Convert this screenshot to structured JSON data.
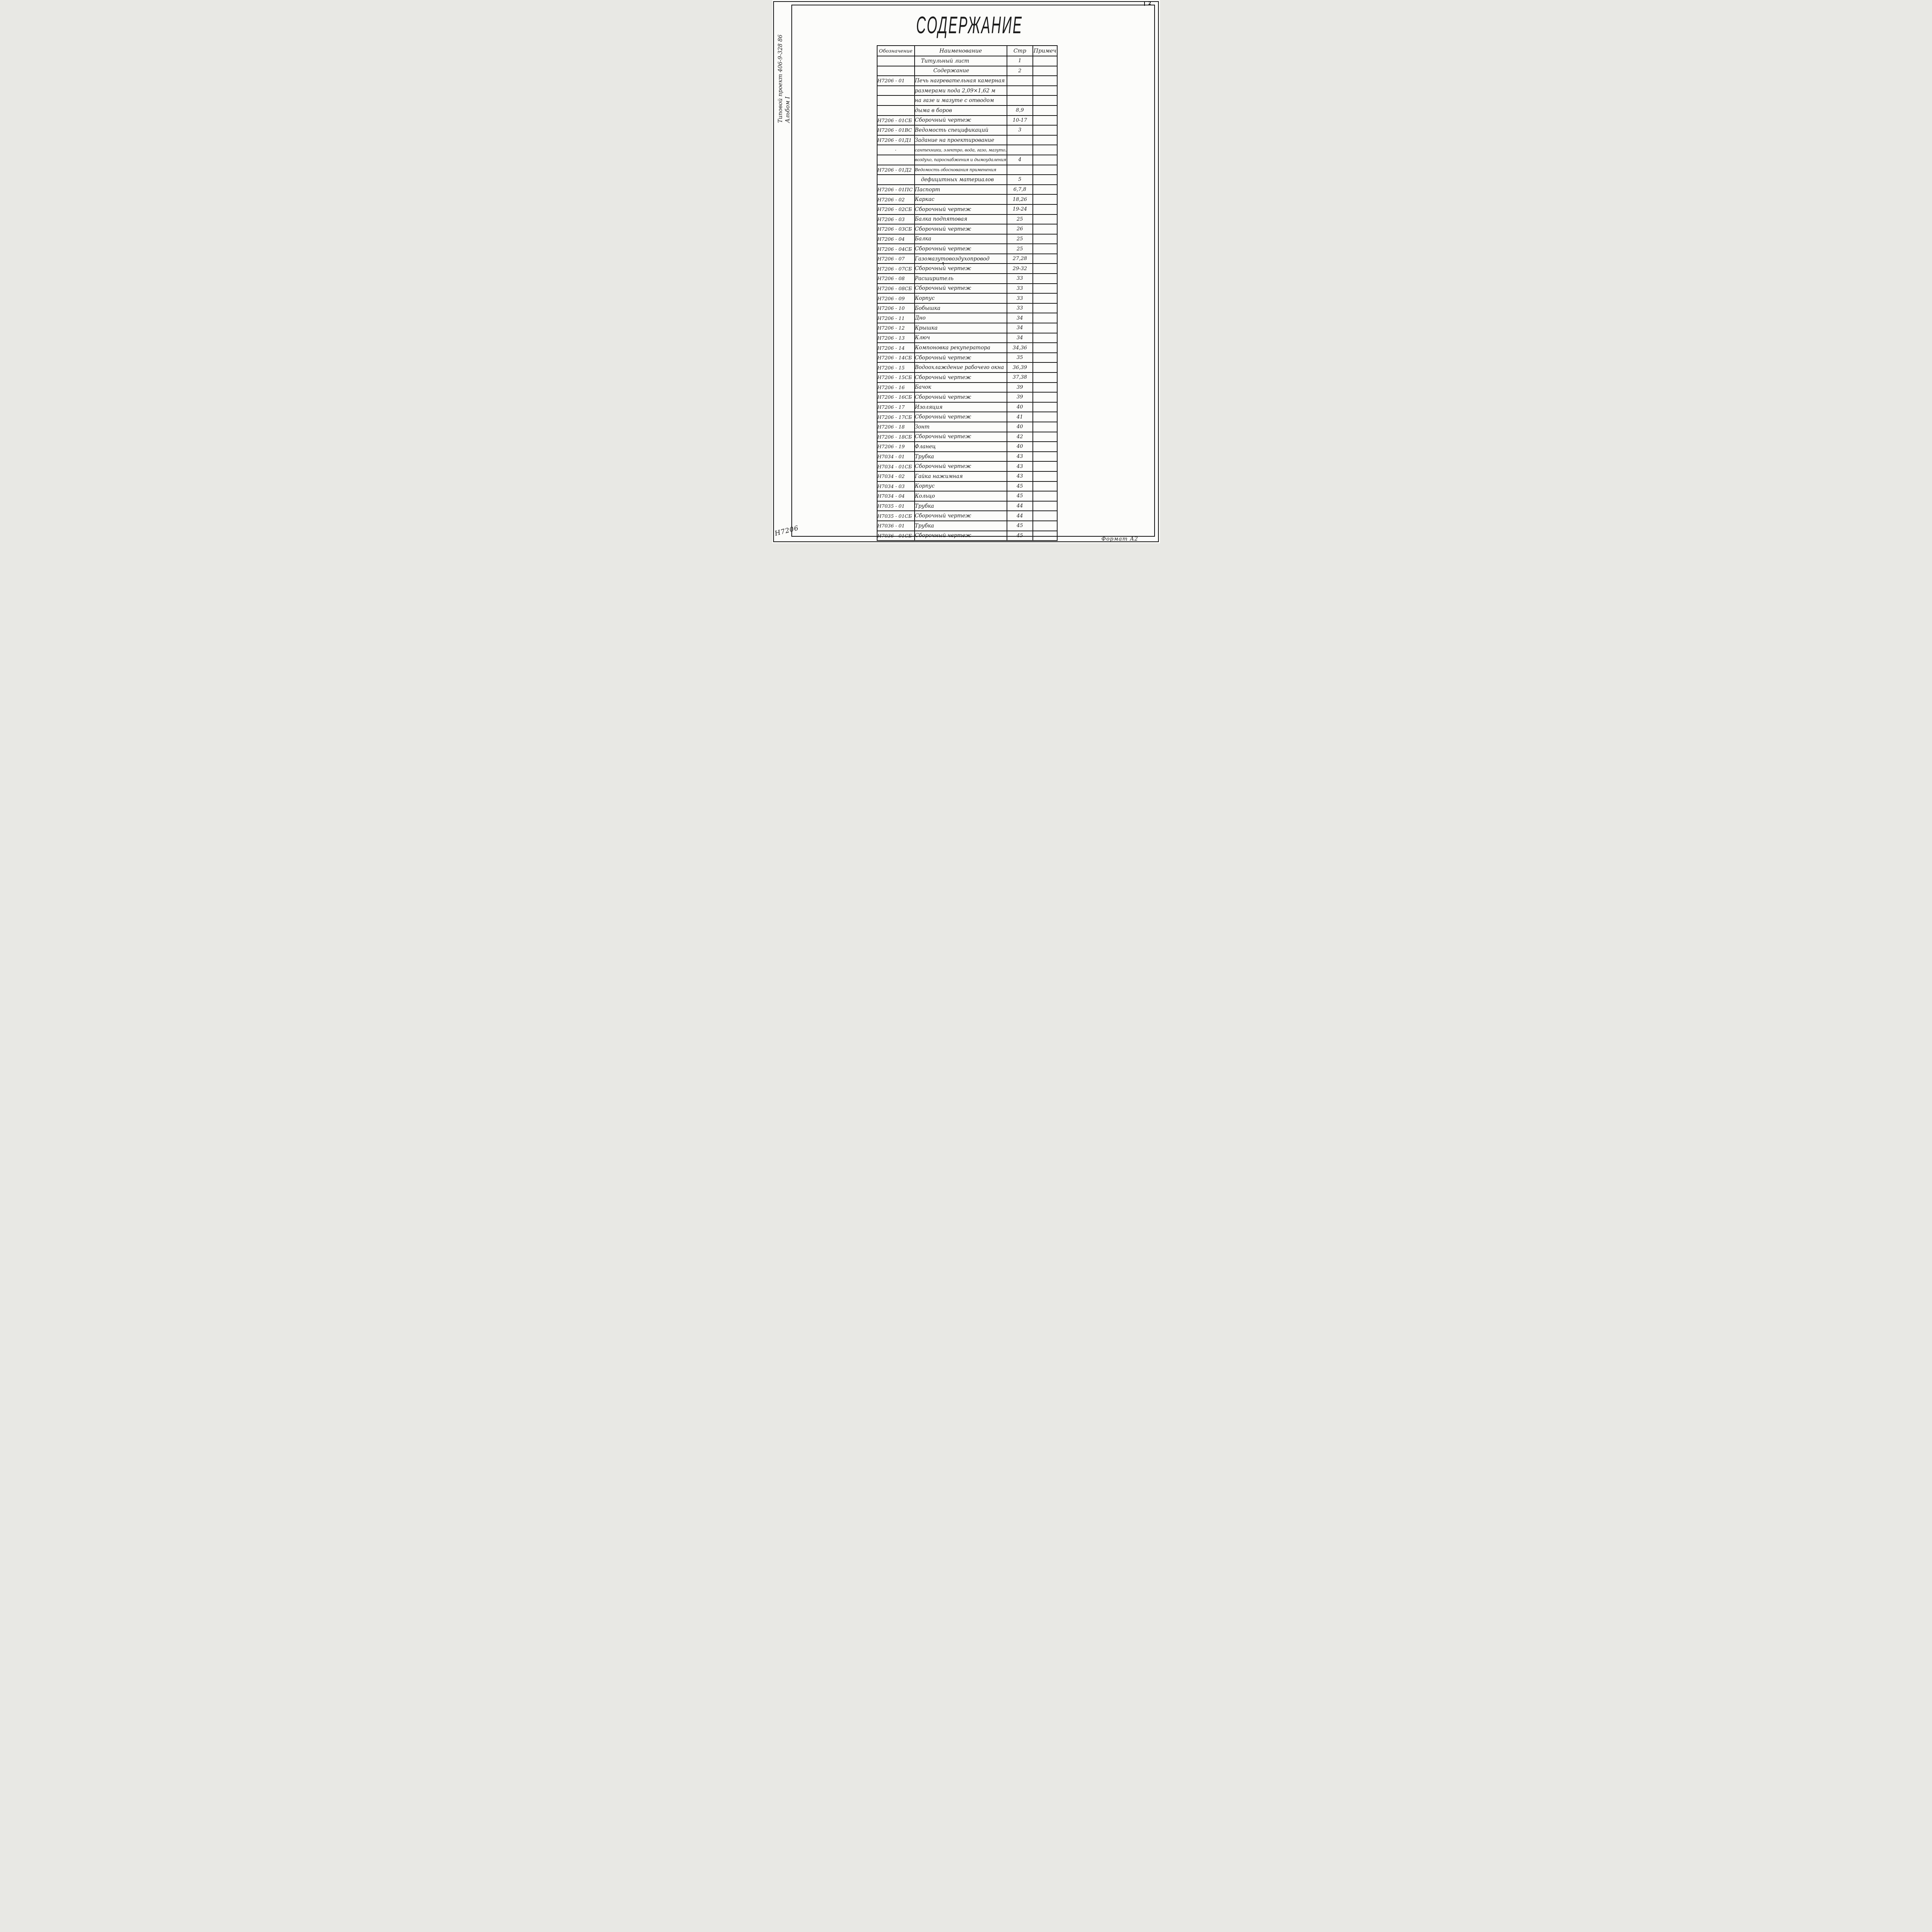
{
  "page": {
    "sheet_number": "2",
    "title": "СОДЕРЖАНИЕ",
    "side_label_line1": "Типовой проект 406-9-328 86",
    "side_label_line2": "Альбом I",
    "footer_left_code": "Н7206",
    "footer_right_label": "Формат А2",
    "stray_mark": "↑",
    "ink_color": "#1b1b1b",
    "paper_color": "#fcfcfa"
  },
  "table": {
    "headers": [
      "Обозначение",
      "Наименование",
      "Стр",
      "Примеч"
    ],
    "rows": [
      {
        "code": "",
        "name": "Титульный лист",
        "page": "1",
        "note": "",
        "name_indent": 16
      },
      {
        "code": "",
        "name": "Содержание",
        "page": "2",
        "note": "",
        "name_indent": 48
      },
      {
        "code": "Н7206 - 01",
        "name": "Печь нагревательная камерная",
        "page": "",
        "note": ""
      },
      {
        "code": "",
        "name": "размерами пода 2,09×1,62 м",
        "page": "",
        "note": ""
      },
      {
        "code": "",
        "name": "на газе и мазуте с отводом",
        "page": "",
        "note": ""
      },
      {
        "code": "",
        "name": "дыма в боров",
        "page": "8,9",
        "note": ""
      },
      {
        "code": "Н7206 - 01СБ",
        "name": "Сборочный чертеж",
        "page": "10-17",
        "note": ""
      },
      {
        "code": "Н7206 - 01ВС",
        "name": "Ведомость спецификаций",
        "page": "3",
        "note": ""
      },
      {
        "code": "Н7206 - 01Д1",
        "name": "Задание на проектирование",
        "page": "",
        "note": ""
      },
      {
        "code": "·",
        "name": "сантехники, электро, вода, газо, мазуто,",
        "page": "",
        "note": "",
        "small": true,
        "code_center": true
      },
      {
        "code": "",
        "name": "воздухо, пароснабжения и дымоудаления",
        "page": "4",
        "note": "",
        "small": true
      },
      {
        "code": "Н7206 - 01Д2",
        "name": "Ведомость обоснования применения",
        "page": "",
        "note": "",
        "small": true
      },
      {
        "code": "",
        "name": "дефицитных материалов",
        "page": "5",
        "note": "",
        "name_indent": 16
      },
      {
        "code": "Н7206 - 01ПС",
        "name": "Паспорт",
        "page": "6,7,8",
        "note": ""
      },
      {
        "code": "Н7206 - 02",
        "name": "Каркас",
        "page": "18,26",
        "note": ""
      },
      {
        "code": "Н7206 - 02СБ",
        "name": "Сборочный чертеж",
        "page": "19-24",
        "note": ""
      },
      {
        "code": "Н7206 - 03",
        "name": "Балка подпятовая",
        "page": "25",
        "note": ""
      },
      {
        "code": "Н7206 - 03СБ",
        "name": "Сборочный чертеж",
        "page": "26",
        "note": ""
      },
      {
        "code": "Н7206 - 04",
        "name": "Балка",
        "page": "25",
        "note": ""
      },
      {
        "code": "Н7206 - 04СБ",
        "name": "Сборочный чертеж",
        "page": "25",
        "note": ""
      },
      {
        "code": "Н7206 - 07",
        "name": "Газомазутовоздухопровод",
        "page": "27,28",
        "note": ""
      },
      {
        "code": "Н7206 - 07СБ",
        "name": "Сборочный чертеж",
        "page": "29-32",
        "note": ""
      },
      {
        "code": "Н7206 - 08",
        "name": "Расширитель",
        "page": "33",
        "note": ""
      },
      {
        "code": "Н7206 - 08СБ",
        "name": "Сборочный чертеж",
        "page": "33",
        "note": ""
      },
      {
        "code": "Н7206 - 09",
        "name": "Корпус",
        "page": "33",
        "note": ""
      },
      {
        "code": "Н7206 - 10",
        "name": "Бобышка",
        "page": "33",
        "note": ""
      },
      {
        "code": "Н7206 - 11",
        "name": "Дно",
        "page": "34",
        "note": ""
      },
      {
        "code": "Н7206 - 12",
        "name": "Крышка",
        "page": "34",
        "note": ""
      },
      {
        "code": "Н7206 - 13",
        "name": "Ключ",
        "page": "34",
        "note": ""
      },
      {
        "code": "Н7206 - 14",
        "name": "Компоновка рекуператора",
        "page": "34,36",
        "note": ""
      },
      {
        "code": "Н7206 - 14СБ",
        "name": "Сборочный чертеж",
        "page": "35",
        "note": ""
      },
      {
        "code": "Н7206 - 15",
        "name": "Водоохлаждение рабочего окна",
        "page": "36,39",
        "note": ""
      },
      {
        "code": "Н7206 - 15СБ",
        "name": "Сборочный чертеж",
        "page": "37,38",
        "note": ""
      },
      {
        "code": "Н7206 - 16",
        "name": "Бачок",
        "page": "39",
        "note": ""
      },
      {
        "code": "Н7206 - 16СБ",
        "name": "Сборочный чертеж",
        "page": "39",
        "note": ""
      },
      {
        "code": "Н7206 - 17",
        "name": "Изоляция",
        "page": "40",
        "note": ""
      },
      {
        "code": "Н7206 - 17СБ",
        "name": "Сборочный чертеж",
        "page": "41",
        "note": ""
      },
      {
        "code": "Н7206 - 18",
        "name": "Зонт",
        "page": "40",
        "note": ""
      },
      {
        "code": "Н7206 - 18СБ",
        "name": "Сборочный чертеж",
        "page": "42",
        "note": ""
      },
      {
        "code": "Н7206 - 19",
        "name": "Фланец",
        "page": "40",
        "note": ""
      },
      {
        "code": "Н7034 - 01",
        "name": "Трубка",
        "page": "43",
        "note": ""
      },
      {
        "code": "Н7034 - 01СБ",
        "name": "Сборочный чертеж",
        "page": "43",
        "note": ""
      },
      {
        "code": "Н7034 - 02",
        "name": "Гайка нажимная",
        "page": "43",
        "note": ""
      },
      {
        "code": "Н7034 - 03",
        "name": "Корпус",
        "page": "45",
        "note": ""
      },
      {
        "code": "Н7034 - 04",
        "name": "Кольцо",
        "page": "45",
        "note": ""
      },
      {
        "code": "Н7035 - 01",
        "name": "Трубка",
        "page": "44",
        "note": ""
      },
      {
        "code": "Н7035 - 01СБ",
        "name": "Сборочный чертеж",
        "page": "44",
        "note": ""
      },
      {
        "code": "Н7036 - 01",
        "name": "Трубка",
        "page": "45",
        "note": ""
      },
      {
        "code": "Н7036 - 01СБ",
        "name": "Сборочный чертеж",
        "page": "45",
        "note": ""
      }
    ]
  }
}
